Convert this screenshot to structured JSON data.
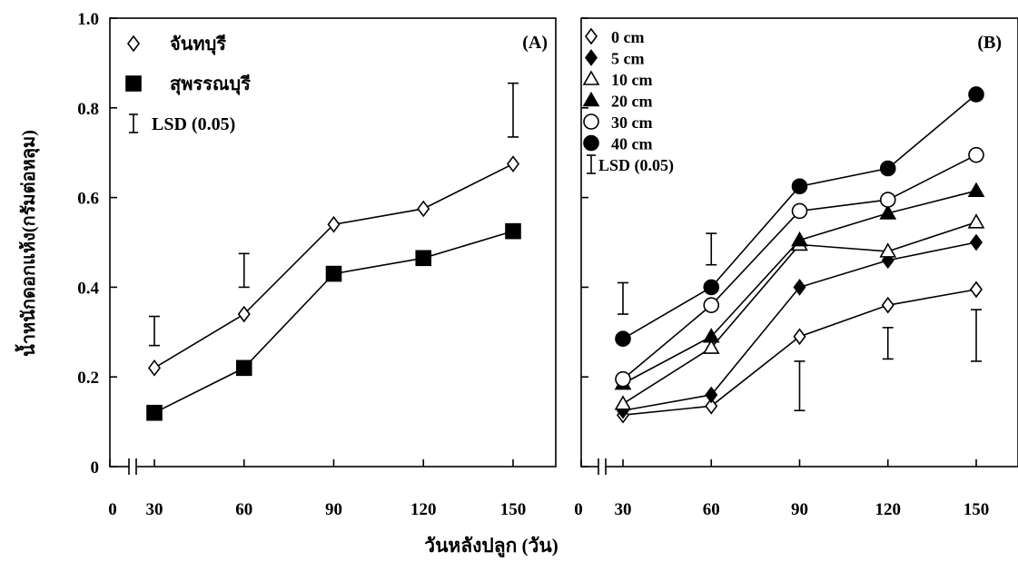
{
  "figure": {
    "ylabel": "น้ำหนักดอกแห้ง(กรัมต่อหลุม)",
    "xlabel": "วันหลังปลูก (วัน)"
  },
  "chart_data": [
    {
      "type": "line",
      "panel_label": "(A)",
      "x": [
        30,
        60,
        90,
        120,
        150
      ],
      "xticks": [
        "0",
        "30",
        "60",
        "90",
        "120",
        "150"
      ],
      "yticks": [
        "0",
        "0.2",
        "0.4",
        "0.6",
        "0.8",
        "1.0"
      ],
      "ylim": [
        0,
        1.0
      ],
      "axis_break": true,
      "grid": false,
      "legend_position": "top-left",
      "series": [
        {
          "name": "จันทบุรี",
          "marker": "diamond-open",
          "values": [
            0.22,
            0.34,
            0.54,
            0.575,
            0.675
          ]
        },
        {
          "name": "สุพรรณบุรี",
          "marker": "square-filled",
          "values": [
            0.12,
            0.22,
            0.43,
            0.465,
            0.525
          ]
        }
      ],
      "lsd": {
        "name": "LSD (0.05)",
        "bars": [
          {
            "x": 30,
            "low": 0.27,
            "high": 0.335
          },
          {
            "x": 60,
            "low": 0.4,
            "high": 0.475
          },
          {
            "x": 150,
            "low": 0.735,
            "high": 0.855
          }
        ]
      }
    },
    {
      "type": "line",
      "panel_label": "(B)",
      "x": [
        30,
        60,
        90,
        120,
        150
      ],
      "xticks": [
        "0",
        "30",
        "60",
        "90",
        "120",
        "150"
      ],
      "ylim": [
        0,
        1.0
      ],
      "axis_break": true,
      "grid": false,
      "legend_position": "top-left",
      "series": [
        {
          "name": "0 cm",
          "marker": "diamond-open",
          "values": [
            0.115,
            0.135,
            0.29,
            0.36,
            0.395
          ]
        },
        {
          "name": "5 cm",
          "marker": "diamond-filled",
          "values": [
            0.125,
            0.16,
            0.4,
            0.46,
            0.5
          ]
        },
        {
          "name": "10 cm",
          "marker": "triangle-open",
          "values": [
            0.14,
            0.265,
            0.495,
            0.48,
            0.545
          ]
        },
        {
          "name": "20 cm",
          "marker": "triangle-filled",
          "values": [
            0.185,
            0.29,
            0.505,
            0.565,
            0.615
          ]
        },
        {
          "name": "30 cm",
          "marker": "circle-open",
          "values": [
            0.195,
            0.36,
            0.57,
            0.595,
            0.695
          ]
        },
        {
          "name": "40 cm",
          "marker": "circle-filled",
          "values": [
            0.285,
            0.4,
            0.625,
            0.665,
            0.83
          ]
        }
      ],
      "lsd": {
        "name": "LSD (0.05)",
        "bars": [
          {
            "x": 30,
            "low": 0.34,
            "high": 0.41
          },
          {
            "x": 60,
            "low": 0.45,
            "high": 0.52
          },
          {
            "x": 90,
            "low": 0.125,
            "high": 0.235
          },
          {
            "x": 120,
            "low": 0.24,
            "high": 0.31
          },
          {
            "x": 150,
            "low": 0.235,
            "high": 0.35
          }
        ]
      }
    }
  ]
}
